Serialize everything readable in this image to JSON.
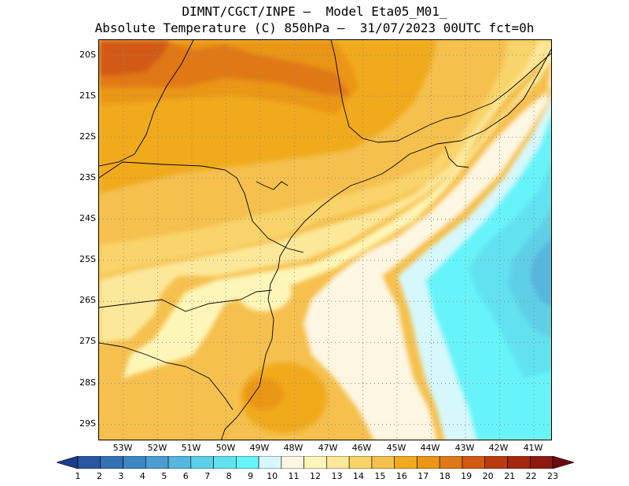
{
  "header": {
    "title_line1": "DIMNT/CGCT/INPE —  Model Eta05_M01_",
    "title_line2": "Absolute Temperature (C) 850hPa —  31/07/2023 00UTC fct=0h"
  },
  "map": {
    "lat_labels": [
      "20S",
      "21S",
      "22S",
      "23S",
      "24S",
      "25S",
      "26S",
      "27S",
      "28S",
      "29S"
    ],
    "lon_labels": [
      "53W",
      "52W",
      "51W",
      "50W",
      "49W",
      "48W",
      "47W",
      "46W",
      "45W",
      "44W",
      "43W",
      "42W",
      "41W"
    ],
    "field": "temperature at 850hPa (C)"
  },
  "colorbar": {
    "labels": [
      "1",
      "2",
      "3",
      "4",
      "5",
      "6",
      "7",
      "8",
      "9",
      "10",
      "11",
      "12",
      "13",
      "14",
      "15",
      "16",
      "17",
      "18",
      "19",
      "20",
      "21",
      "22",
      "23"
    ],
    "colors": [
      "#1f3c8c",
      "#2856a0",
      "#3370b4",
      "#3c86c4",
      "#4a9ed2",
      "#56b6de",
      "#5ecfe8",
      "#62e2f0",
      "#66f4fa",
      "#d6f8fc",
      "#fdf6e2",
      "#fef6b8",
      "#fde89a",
      "#f9d46a",
      "#f5c04e",
      "#f0aa1e",
      "#ea9614",
      "#e07818",
      "#d25a12",
      "#b83c0e",
      "#a42810",
      "#8c1a10",
      "#6c0a10"
    ]
  }
}
